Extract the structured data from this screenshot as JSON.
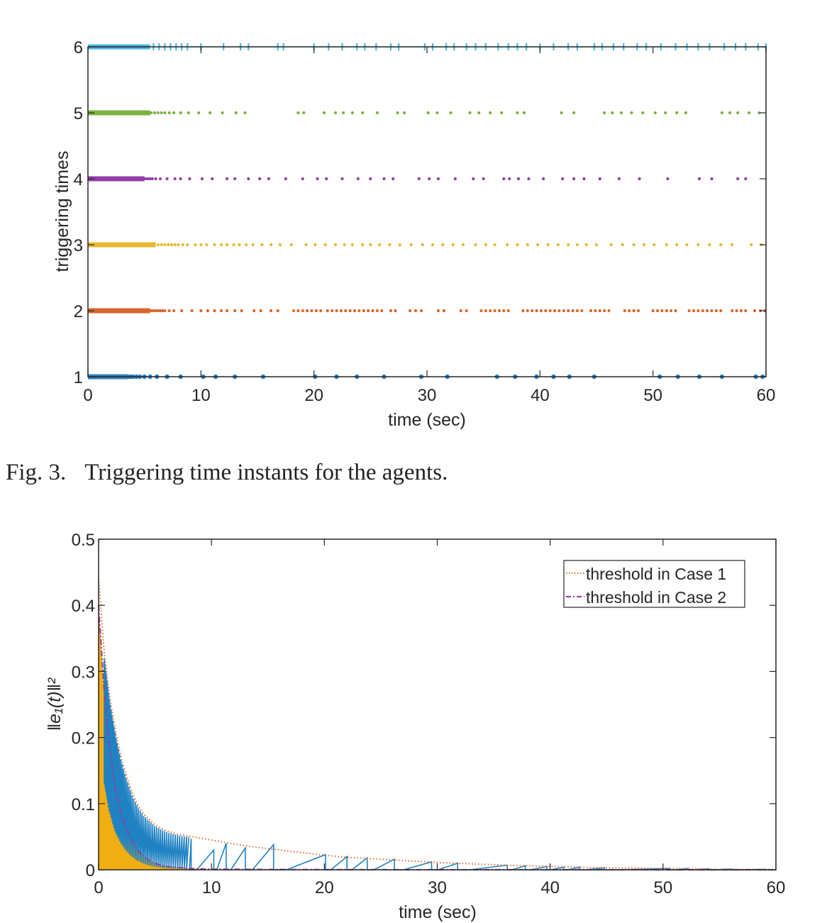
{
  "caption": {
    "fig_label": "Fig. 3.",
    "text": "Triggering time instants for the agents."
  },
  "colors": {
    "agent1": "#2d7fc0",
    "agent2": "#d9652a",
    "agent3": "#e6b92e",
    "agent4": "#8e3ea6",
    "agent5": "#7ab23c",
    "agent6": "#4ab6e6",
    "case1": "#e0692c",
    "case2": "#8e3ea6",
    "fill": "#f1ae12",
    "error": "#1f82c2"
  },
  "chart_data": [
    {
      "type": "scatter",
      "title": "",
      "xlabel": "time (sec)",
      "ylabel": "triggering times",
      "xlim": [
        0,
        60
      ],
      "ylim": [
        1,
        6
      ],
      "xticks": [
        "0",
        "10",
        "20",
        "30",
        "40",
        "50",
        "60"
      ],
      "yticks": [
        "1",
        "2",
        "3",
        "4",
        "5",
        "6"
      ],
      "grid": false,
      "series": [
        {
          "agent": 1,
          "dense_until": 3.5,
          "events": [
            3.6,
            3.8,
            4.0,
            4.3,
            4.6,
            5.0,
            5.5,
            6.1,
            7.0,
            8.2,
            10.2,
            11.3,
            13.0,
            15.5,
            20.1,
            22.0,
            23.8,
            26.2,
            29.5,
            31.8,
            36.2,
            37.8,
            39.7,
            41.2,
            42.6,
            44.8,
            50.6,
            52.2,
            54.1,
            56.1,
            59.1,
            59.7
          ]
        },
        {
          "agent": 2,
          "dense_until": 5.5,
          "events": [
            5.6,
            5.8,
            6.0,
            6.2,
            6.4,
            6.6,
            6.8,
            7.2,
            7.6,
            8.3,
            9.2,
            10.0,
            10.6,
            11.2,
            11.8,
            12.3,
            13.0,
            13.6,
            14.7,
            15.3,
            16.2,
            16.8,
            18.2,
            18.6,
            19.0,
            19.4,
            19.8,
            20.2,
            20.6,
            21.2,
            21.6,
            22.0,
            22.4,
            22.8,
            23.2,
            23.6,
            24.0,
            24.4,
            24.8,
            25.2,
            25.6,
            26.0,
            26.8,
            27.2,
            28.5,
            29.0,
            29.5,
            31.0,
            31.5,
            33.0,
            33.5,
            34.8,
            35.2,
            35.6,
            36.0,
            36.4,
            36.8,
            37.2,
            38.5,
            38.9,
            39.3,
            39.7,
            40.1,
            40.5,
            40.9,
            41.3,
            41.7,
            42.1,
            42.5,
            42.9,
            43.3,
            43.7,
            44.5,
            44.9,
            45.3,
            45.7,
            46.1,
            47.5,
            47.9,
            48.3,
            48.7,
            50.0,
            50.4,
            50.8,
            51.2,
            51.6,
            52.0,
            53.2,
            53.6,
            54.0,
            54.4,
            54.8,
            55.2,
            55.6,
            56.0,
            57.0,
            57.4,
            57.8,
            58.2,
            59.0,
            59.5,
            59.9
          ]
        },
        {
          "agent": 3,
          "dense_until": 6.0,
          "events": [
            6.2,
            6.5,
            6.8,
            7.1,
            7.4,
            7.7,
            8.0,
            8.4,
            8.8,
            9.5,
            10.0,
            10.5,
            11.2,
            11.8,
            12.3,
            12.9,
            13.4,
            14.0,
            14.6,
            15.4,
            16.2,
            17.0,
            18.0,
            19.3,
            20.1,
            21.0,
            21.9,
            22.7,
            23.4,
            24.3,
            25.0,
            25.8,
            26.7,
            27.6,
            28.6,
            29.6,
            30.5,
            31.4,
            32.3,
            33.2,
            34.3,
            35.2,
            36.0,
            37.1,
            38.0,
            38.9,
            39.8,
            40.7,
            41.6,
            42.5,
            43.3,
            44.1,
            45.0,
            46.3,
            47.3,
            48.3,
            49.2,
            50.1,
            51.2,
            52.1,
            53.0,
            54.0,
            55.0,
            56.0,
            57.0,
            58.7,
            59.6
          ]
        },
        {
          "agent": 4,
          "dense_until": 5.0,
          "events": [
            5.1,
            5.3,
            5.5,
            5.7,
            6.0,
            6.4,
            7.0,
            7.7,
            8.2,
            9.0,
            10.1,
            11.0,
            12.3,
            13.0,
            14.2,
            15.2,
            16.0,
            17.5,
            19.0,
            20.3,
            21.1,
            22.5,
            23.9,
            25.0,
            26.2,
            27.0,
            29.3,
            30.2,
            31.0,
            32.5,
            34.1,
            35.0,
            36.8,
            37.3,
            38.1,
            39.0,
            40.3,
            42.0,
            43.0,
            43.9,
            45.3,
            47.0,
            48.8,
            51.3,
            54.1,
            55.2,
            57.5,
            58.2
          ]
        },
        {
          "agent": 5,
          "dense_until": 5.5,
          "events": [
            5.6,
            5.9,
            6.2,
            6.5,
            6.8,
            7.2,
            7.6,
            8.2,
            8.9,
            9.8,
            10.8,
            11.9,
            13.1,
            13.9,
            18.6,
            19.1,
            20.9,
            21.9,
            22.6,
            23.4,
            24.3,
            25.6,
            27.4,
            28.0,
            30.1,
            30.9,
            32.1,
            33.8,
            34.6,
            35.6,
            36.6,
            38.0,
            38.6,
            41.9,
            43.0,
            45.7,
            46.4,
            47.2,
            48.1,
            49.1,
            50.2,
            51.1,
            52.1,
            52.9,
            56.1,
            56.8,
            57.5,
            58.5,
            59.4
          ]
        },
        {
          "agent": 6,
          "dense_until": 5.5,
          "events": [
            5.8,
            6.3,
            6.8,
            7.3,
            7.8,
            8.3,
            8.8,
            10.0,
            12.0,
            13.5,
            14.2,
            16.8,
            17.3,
            20.0,
            21.3,
            22.5,
            23.8,
            24.5,
            25.5,
            26.8,
            27.5,
            29.8,
            30.5,
            31.7,
            32.4,
            33.5,
            34.3,
            35.2,
            36.3,
            37.2,
            38.0,
            38.8,
            40.0,
            41.2,
            42.5,
            43.3,
            44.8,
            45.5,
            46.5,
            47.4,
            48.6,
            49.4,
            50.7,
            52.0,
            53.0,
            54.0,
            55.0,
            56.3,
            57.3,
            58.2,
            59.3,
            60.0
          ]
        }
      ]
    },
    {
      "type": "line",
      "title": "",
      "xlabel": "time (sec)",
      "ylabel": "‖e₁(t)‖²",
      "xlim": [
        0,
        60
      ],
      "ylim": [
        0,
        0.5
      ],
      "xticks": [
        "0",
        "10",
        "20",
        "30",
        "40",
        "50",
        "60"
      ],
      "yticks": [
        "0",
        "0.1",
        "0.2",
        "0.3",
        "0.4",
        "0.5"
      ],
      "grid": false,
      "legend": {
        "position": "top-right",
        "entries": [
          "threshold in Case 1",
          "threshold in Case 2"
        ]
      },
      "series": [
        {
          "name": "threshold in Case 1",
          "style": "dotted",
          "x": [
            0,
            0.5,
            1,
            1.5,
            2,
            2.5,
            3,
            3.5,
            4,
            5,
            6,
            7,
            8,
            10,
            12,
            14,
            16,
            18,
            20,
            22,
            25,
            28,
            30,
            33,
            36,
            40,
            45,
            50,
            55,
            60
          ],
          "y": [
            0.44,
            0.33,
            0.26,
            0.21,
            0.17,
            0.14,
            0.115,
            0.097,
            0.084,
            0.068,
            0.059,
            0.054,
            0.051,
            0.045,
            0.039,
            0.034,
            0.03,
            0.026,
            0.022,
            0.019,
            0.016,
            0.013,
            0.011,
            0.009,
            0.007,
            0.005,
            0.003,
            0.002,
            0.001,
            0.0005
          ]
        },
        {
          "name": "threshold in Case 2",
          "style": "dashdot",
          "x": [
            0,
            0.5,
            1,
            1.5,
            2,
            2.5,
            3,
            3.5,
            4,
            4.5,
            5,
            5.5,
            6,
            8,
            10,
            15,
            20,
            30,
            40,
            60
          ],
          "y": [
            0.4,
            0.27,
            0.18,
            0.12,
            0.085,
            0.06,
            0.042,
            0.029,
            0.021,
            0.014,
            0.01,
            0.007,
            0.005,
            0.002,
            0.001,
            0.0005,
            0.0003,
            0.0001,
            0.0001,
            0.0
          ]
        },
        {
          "role": "error-trace-dense",
          "dense_from": 0.5,
          "dense_to": 8.0,
          "count": 58
        },
        {
          "role": "error-trace-sparse",
          "x": [
            8.2,
            10.2,
            11.3,
            13.0,
            15.5,
            20.1,
            22.0,
            23.8,
            26.2,
            29.5,
            31.8,
            36.2,
            37.8,
            39.7,
            41.2,
            42.6,
            44.8,
            50.6,
            52.2,
            54.1,
            56.1,
            59.1
          ],
          "y": [
            0.047,
            0.03,
            0.04,
            0.033,
            0.038,
            0.023,
            0.02,
            0.018,
            0.016,
            0.012,
            0.01,
            0.007,
            0.006,
            0.005,
            0.004,
            0.004,
            0.003,
            0.002,
            0.002,
            0.0015,
            0.001,
            0.0008
          ]
        },
        {
          "role": "case2-errors-filled",
          "fill_until": 9
        }
      ]
    }
  ]
}
